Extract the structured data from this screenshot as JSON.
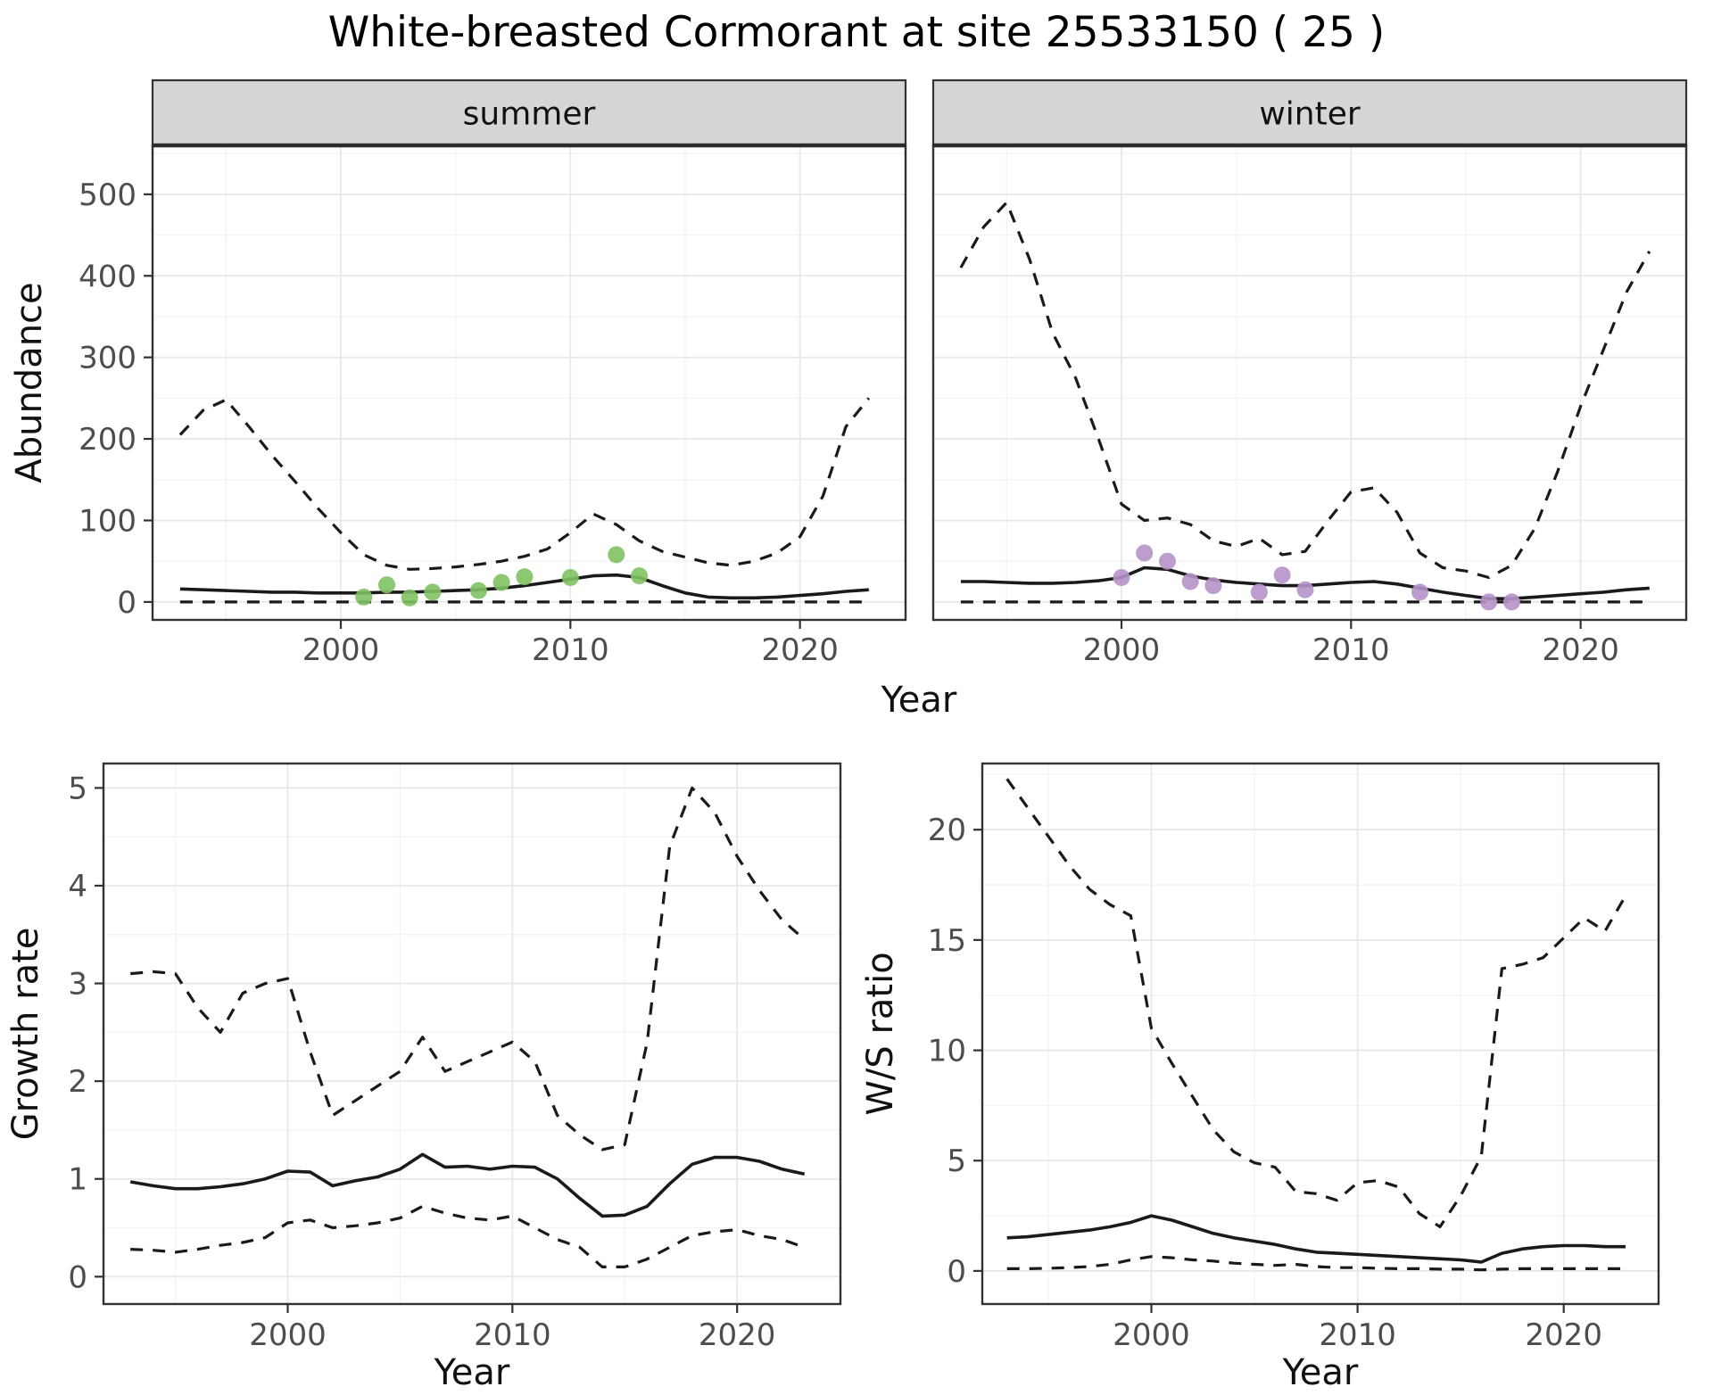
{
  "title": "White-breasted Cormorant at site 25533150 ( 25 )",
  "colors": {
    "summer_points": "#7fc162",
    "winter_points": "#b692c9",
    "line": "#1a1a1a",
    "strip_fill": "#d6d6d6",
    "panel_border": "#333333",
    "grid_major": "#e8e8e8",
    "grid_minor": "#f3f3f3",
    "tick_mark": "#333333"
  },
  "chart_data": [
    {
      "id": "abundance-summer",
      "type": "line",
      "facet_label": "summer",
      "xlabel": "Year",
      "ylabel": "Abundance",
      "xlim": [
        1991.8,
        2024.6
      ],
      "ylim": [
        -22,
        560
      ],
      "xticks": [
        2000,
        2010,
        2020
      ],
      "yticks": [
        0,
        100,
        200,
        300,
        400,
        500
      ],
      "grid": true,
      "x": [
        1993,
        1994,
        1995,
        1996,
        1997,
        1998,
        1999,
        2000,
        2001,
        2002,
        2003,
        2004,
        2005,
        2006,
        2007,
        2008,
        2009,
        2010,
        2011,
        2012,
        2013,
        2014,
        2015,
        2016,
        2017,
        2018,
        2019,
        2020,
        2021,
        2022,
        2023
      ],
      "series": [
        {
          "name": "upper_ci",
          "style": "dashed",
          "values": [
            205,
            235,
            248,
            215,
            180,
            148,
            115,
            85,
            58,
            45,
            40,
            41,
            43,
            46,
            50,
            56,
            65,
            85,
            108,
            95,
            75,
            62,
            55,
            48,
            45,
            50,
            60,
            80,
            130,
            215,
            250
          ]
        },
        {
          "name": "mean",
          "style": "solid",
          "values": [
            16,
            15,
            14,
            13,
            12,
            12,
            11,
            11,
            11,
            12,
            12,
            13,
            14,
            15,
            17,
            20,
            24,
            28,
            32,
            33,
            30,
            20,
            11,
            6,
            5,
            5,
            6,
            8,
            10,
            13,
            15
          ]
        },
        {
          "name": "lower_ci",
          "style": "dashed",
          "values": [
            0,
            0,
            0,
            0,
            0,
            0,
            0,
            0,
            0,
            0,
            0,
            0,
            0,
            0,
            0,
            0,
            0,
            0,
            0,
            0,
            0,
            0,
            0,
            0,
            0,
            0,
            0,
            0,
            0,
            0,
            0
          ]
        }
      ],
      "points": {
        "name": "summer-observations",
        "color_key": "summer_points",
        "x": [
          2001,
          2002,
          2003,
          2004,
          2006,
          2007,
          2008,
          2010,
          2012,
          2013
        ],
        "y": [
          6,
          21,
          5,
          12,
          14,
          24,
          31,
          30,
          58,
          32
        ]
      }
    },
    {
      "id": "abundance-winter",
      "type": "line",
      "facet_label": "winter",
      "xlabel": "",
      "ylabel": "",
      "xlim": [
        1991.8,
        2024.6
      ],
      "ylim": [
        -22,
        560
      ],
      "xticks": [
        2000,
        2010,
        2020
      ],
      "yticks": [
        0,
        100,
        200,
        300,
        400,
        500
      ],
      "grid": true,
      "x": [
        1993,
        1994,
        1995,
        1996,
        1997,
        1998,
        1999,
        2000,
        2001,
        2002,
        2003,
        2004,
        2005,
        2006,
        2007,
        2008,
        2009,
        2010,
        2011,
        2012,
        2013,
        2014,
        2015,
        2016,
        2017,
        2018,
        2019,
        2020,
        2021,
        2022,
        2023
      ],
      "series": [
        {
          "name": "upper_ci",
          "style": "dashed",
          "values": [
            410,
            460,
            490,
            420,
            330,
            275,
            200,
            120,
            100,
            103,
            95,
            75,
            68,
            78,
            58,
            62,
            100,
            135,
            140,
            110,
            60,
            42,
            38,
            30,
            45,
            90,
            160,
            240,
            310,
            380,
            430
          ]
        },
        {
          "name": "mean",
          "style": "solid",
          "values": [
            25,
            25,
            24,
            23,
            23,
            24,
            26,
            30,
            42,
            40,
            32,
            27,
            24,
            22,
            20,
            20,
            22,
            24,
            25,
            22,
            17,
            12,
            8,
            4,
            4,
            6,
            8,
            10,
            12,
            15,
            17
          ]
        },
        {
          "name": "lower_ci",
          "style": "dashed",
          "values": [
            0,
            0,
            0,
            0,
            0,
            0,
            0,
            0,
            0,
            0,
            0,
            0,
            0,
            0,
            0,
            0,
            0,
            0,
            0,
            0,
            0,
            0,
            0,
            0,
            0,
            0,
            0,
            0,
            0,
            0,
            0
          ]
        }
      ],
      "points": {
        "name": "winter-observations",
        "color_key": "winter_points",
        "x": [
          2000,
          2001,
          2002,
          2003,
          2004,
          2006,
          2007,
          2008,
          2013,
          2016,
          2017
        ],
        "y": [
          30,
          60,
          50,
          25,
          20,
          12,
          33,
          15,
          12,
          0,
          0
        ]
      }
    },
    {
      "id": "growth-rate",
      "type": "line",
      "facet_label": "",
      "xlabel": "Year",
      "ylabel": "Growth rate",
      "xlim": [
        1991.8,
        2024.6
      ],
      "ylim": [
        -0.28,
        5.25
      ],
      "xticks": [
        2000,
        2010,
        2020
      ],
      "yticks": [
        0,
        1,
        2,
        3,
        4,
        5
      ],
      "grid": true,
      "x": [
        1993,
        1994,
        1995,
        1996,
        1997,
        1998,
        1999,
        2000,
        2001,
        2002,
        2003,
        2004,
        2005,
        2006,
        2007,
        2008,
        2009,
        2010,
        2011,
        2012,
        2013,
        2014,
        2015,
        2016,
        2017,
        2018,
        2019,
        2020,
        2021,
        2022,
        2023
      ],
      "series": [
        {
          "name": "upper_ci",
          "style": "dashed",
          "values": [
            3.1,
            3.12,
            3.1,
            2.75,
            2.5,
            2.9,
            3.0,
            3.05,
            2.3,
            1.65,
            1.8,
            1.95,
            2.1,
            2.45,
            2.1,
            2.2,
            2.3,
            2.4,
            2.2,
            1.65,
            1.45,
            1.3,
            1.35,
            2.4,
            4.4,
            5.0,
            4.75,
            4.3,
            3.95,
            3.65,
            3.45
          ]
        },
        {
          "name": "mean",
          "style": "solid",
          "values": [
            0.97,
            0.93,
            0.9,
            0.9,
            0.92,
            0.95,
            1.0,
            1.08,
            1.07,
            0.93,
            0.98,
            1.02,
            1.1,
            1.25,
            1.12,
            1.13,
            1.1,
            1.13,
            1.12,
            1.0,
            0.8,
            0.62,
            0.63,
            0.72,
            0.95,
            1.15,
            1.22,
            1.22,
            1.18,
            1.1,
            1.05
          ]
        },
        {
          "name": "lower_ci",
          "style": "dashed",
          "values": [
            0.28,
            0.27,
            0.25,
            0.28,
            0.32,
            0.35,
            0.4,
            0.55,
            0.58,
            0.5,
            0.52,
            0.55,
            0.6,
            0.72,
            0.65,
            0.6,
            0.58,
            0.62,
            0.5,
            0.38,
            0.3,
            0.1,
            0.1,
            0.18,
            0.3,
            0.42,
            0.46,
            0.48,
            0.42,
            0.38,
            0.3
          ]
        }
      ],
      "points": null
    },
    {
      "id": "ws-ratio",
      "type": "line",
      "facet_label": "",
      "xlabel": "Year",
      "ylabel": "W/S ratio",
      "xlim": [
        1991.8,
        2024.6
      ],
      "ylim": [
        -1.5,
        23
      ],
      "xticks": [
        2000,
        2010,
        2020
      ],
      "yticks": [
        0,
        5,
        10,
        15,
        20
      ],
      "grid": true,
      "x": [
        1993,
        1994,
        1995,
        1996,
        1997,
        1998,
        1999,
        2000,
        2001,
        2002,
        2003,
        2004,
        2005,
        2006,
        2007,
        2008,
        2009,
        2010,
        2011,
        2012,
        2013,
        2014,
        2015,
        2016,
        2017,
        2018,
        2019,
        2020,
        2021,
        2022,
        2023
      ],
      "series": [
        {
          "name": "upper_ci",
          "style": "dashed",
          "values": [
            22.3,
            21.0,
            19.7,
            18.4,
            17.3,
            16.6,
            16.1,
            11.0,
            9.4,
            7.9,
            6.4,
            5.4,
            4.9,
            4.7,
            3.6,
            3.5,
            3.2,
            4.0,
            4.1,
            3.8,
            2.6,
            2.0,
            3.4,
            5.2,
            13.7,
            13.9,
            14.2,
            15.1,
            16.0,
            15.4,
            17.0
          ]
        },
        {
          "name": "mean",
          "style": "solid",
          "values": [
            1.5,
            1.55,
            1.65,
            1.75,
            1.85,
            2.0,
            2.2,
            2.5,
            2.3,
            2.0,
            1.7,
            1.5,
            1.35,
            1.2,
            1.0,
            0.85,
            0.8,
            0.75,
            0.7,
            0.65,
            0.6,
            0.55,
            0.5,
            0.4,
            0.8,
            1.0,
            1.1,
            1.15,
            1.15,
            1.1,
            1.1
          ]
        },
        {
          "name": "lower_ci",
          "style": "dashed",
          "values": [
            0.1,
            0.1,
            0.12,
            0.15,
            0.2,
            0.3,
            0.5,
            0.65,
            0.6,
            0.5,
            0.45,
            0.35,
            0.3,
            0.25,
            0.3,
            0.2,
            0.15,
            0.15,
            0.12,
            0.1,
            0.1,
            0.08,
            0.08,
            0.05,
            0.08,
            0.1,
            0.1,
            0.1,
            0.1,
            0.1,
            0.1
          ]
        }
      ],
      "points": null
    }
  ]
}
